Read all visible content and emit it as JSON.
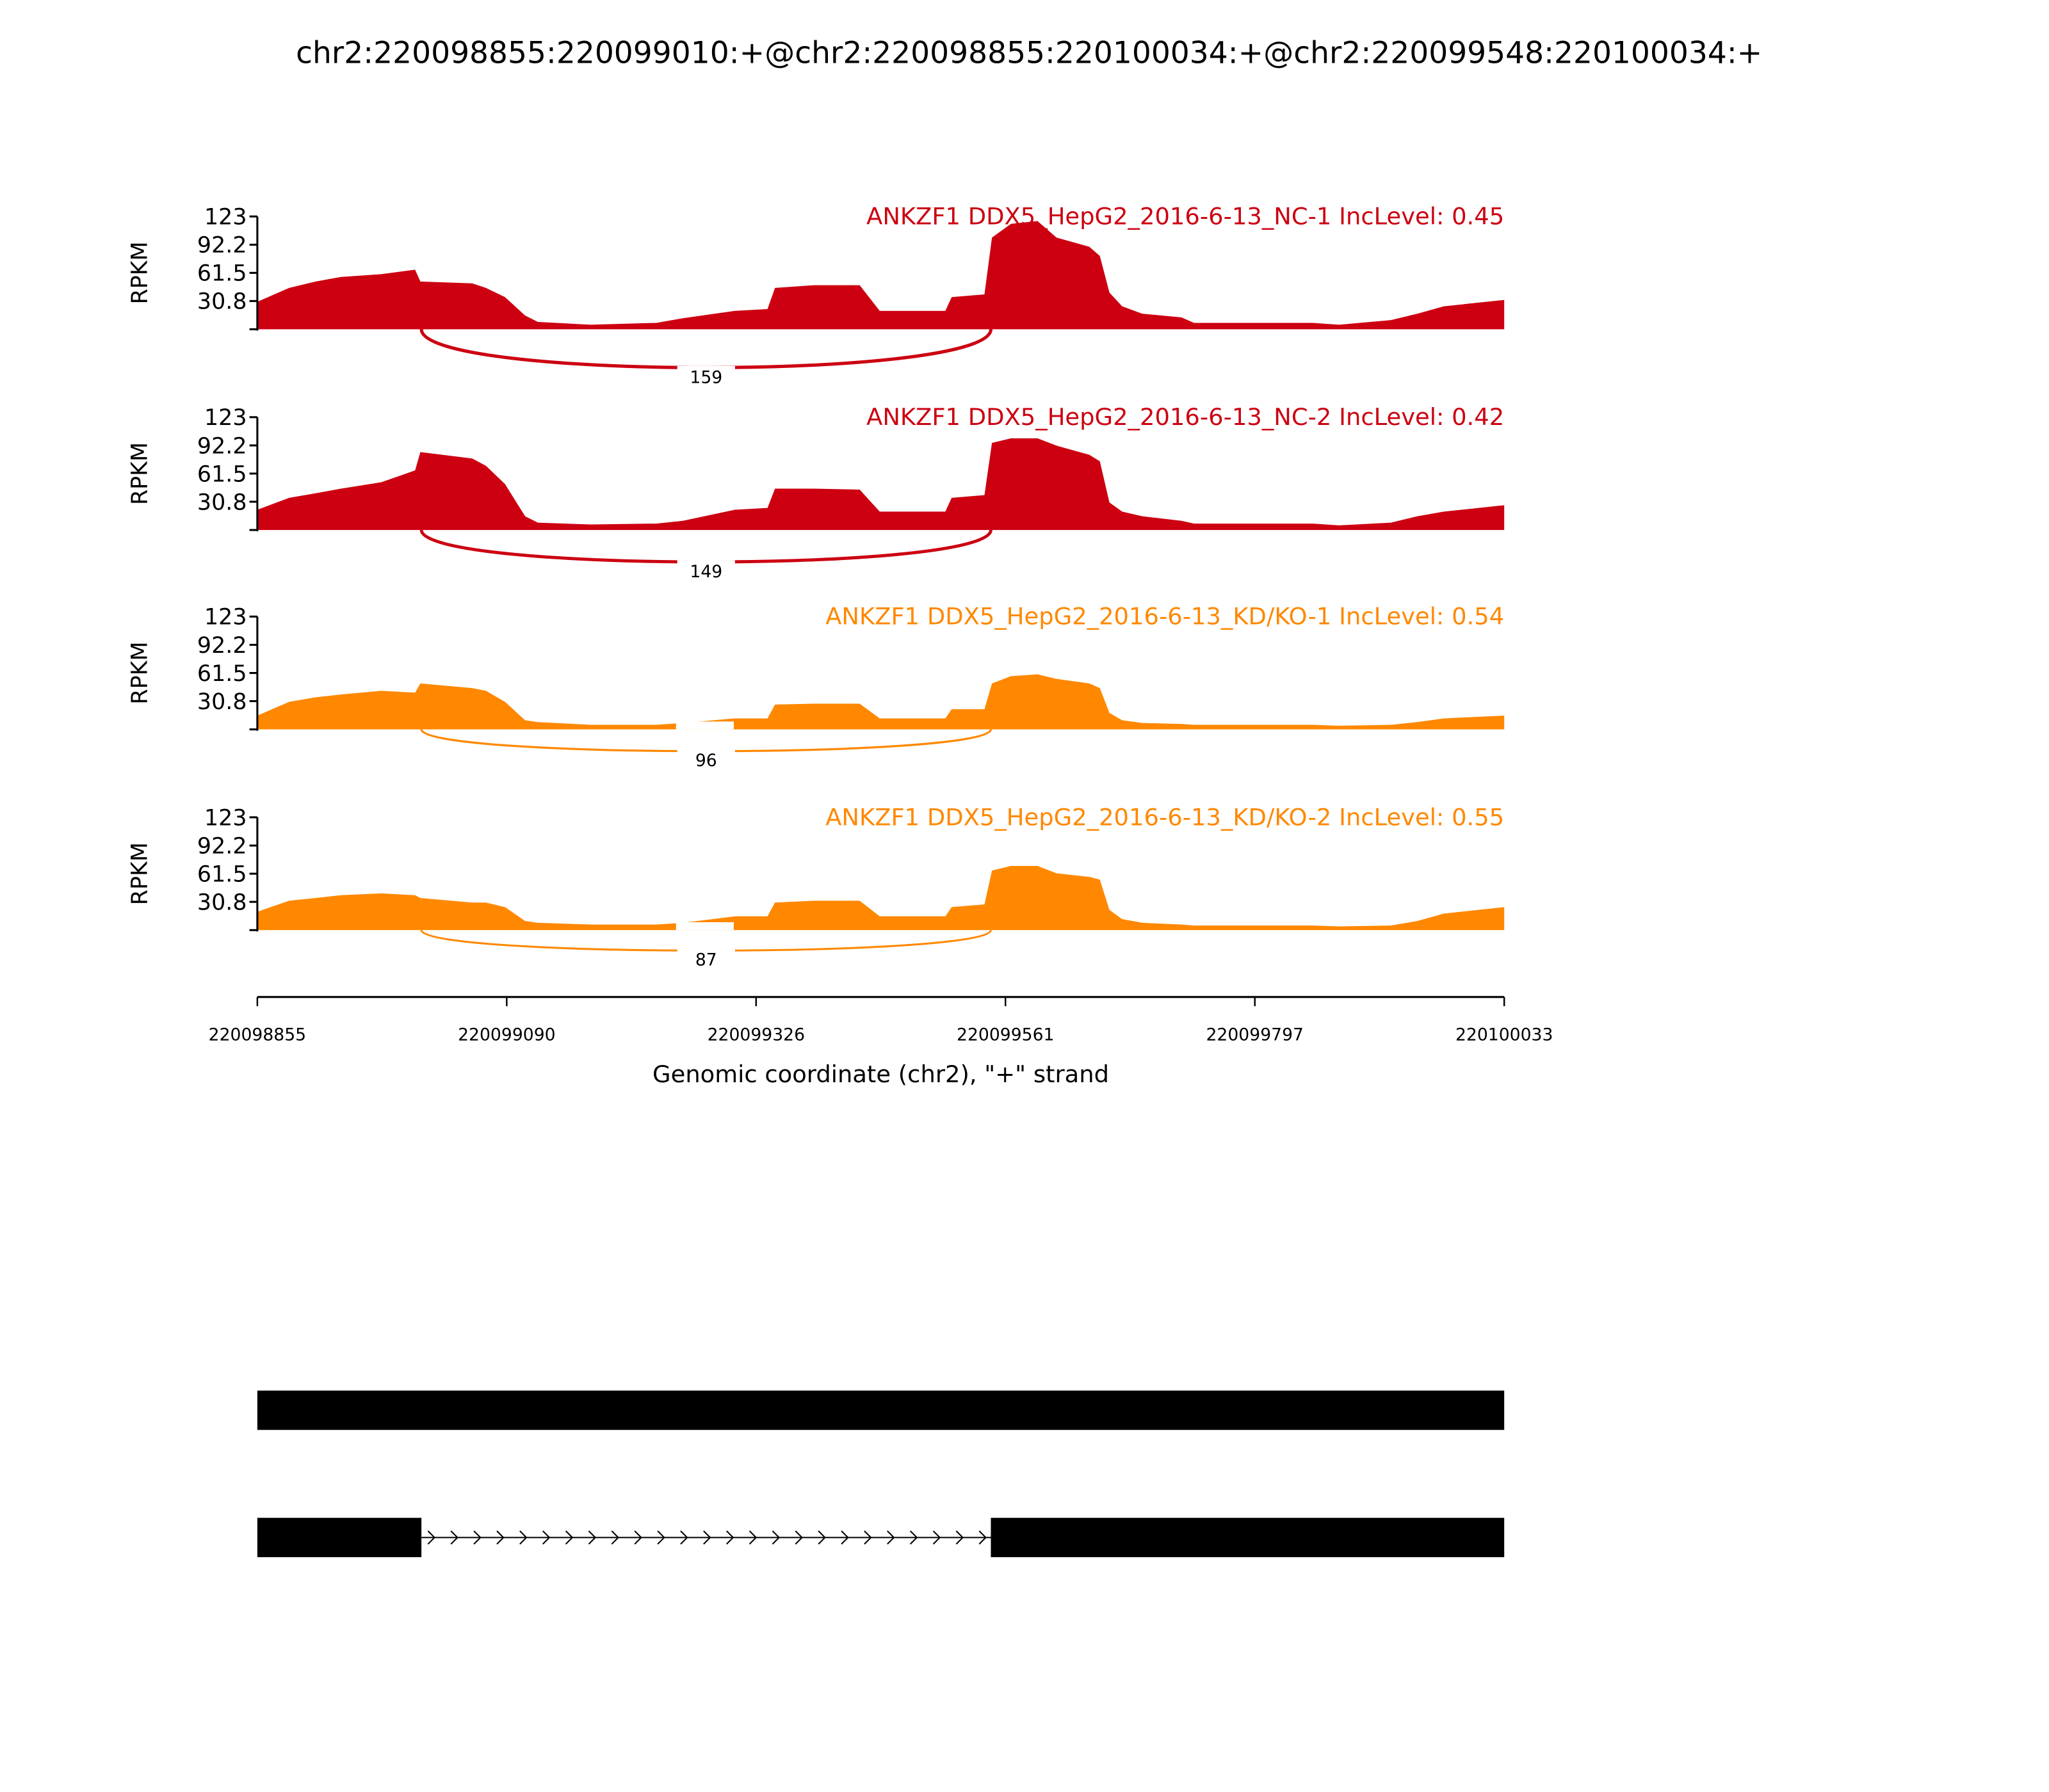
{
  "chart_data": {
    "type": "area",
    "title": "chr2:220098855:220099010:+@chr2:220098855:220100034:+@chr2:220099548:220100034:+",
    "xlabel": "Genomic coordinate (chr2), \"+\" strand",
    "ylabel": "RPKM",
    "xlim": [
      220098855,
      220100033
    ],
    "ylim": [
      0,
      123
    ],
    "yticks": [
      "30.8",
      "61.5",
      "92.2",
      "123"
    ],
    "ytick_values": [
      30.8,
      61.5,
      92.2,
      123
    ],
    "xticks": [
      "220098855",
      "220099090",
      "220099326",
      "220099561",
      "220099797",
      "220100033"
    ],
    "positions": [
      220098855,
      220098885,
      220098910,
      220098934,
      220098972,
      220099004,
      220099009,
      220099058,
      220099071,
      220099089,
      220099108,
      220099120,
      220099170,
      220099232,
      220099257,
      220099306,
      220099337,
      220099344,
      220099381,
      220099424,
      220099443,
      220099505,
      220099511,
      220099542,
      220099549,
      220099567,
      220099592,
      220099610,
      220099641,
      220099651,
      220099660,
      220099672,
      220099691,
      220099728,
      220099740,
      220099852,
      220099877,
      220099926,
      220099951,
      220099976,
      220100033
    ],
    "series": [
      {
        "name": "ANKZF1 DDX5_HepG2_2016-6-13_NC-1 IncLevel: 0.45",
        "color": "#cc0011",
        "junction": {
          "start": 220099010,
          "end": 220099548,
          "count": "159"
        },
        "values": [
          30,
          45,
          52,
          57,
          60,
          65,
          52,
          50,
          45,
          35,
          15,
          8,
          5,
          7,
          12,
          20,
          22,
          45,
          48,
          48,
          20,
          20,
          35,
          38,
          100,
          115,
          118,
          100,
          90,
          80,
          40,
          25,
          17,
          13,
          7,
          7,
          5,
          10,
          17,
          25,
          32
        ]
      },
      {
        "name": "ANKZF1 DDX5_HepG2_2016-6-13_NC-2 IncLevel: 0.42",
        "color": "#cc0011",
        "junction": {
          "start": 220099010,
          "end": 220099548,
          "count": "149"
        },
        "values": [
          22,
          35,
          40,
          45,
          52,
          65,
          85,
          78,
          70,
          50,
          15,
          8,
          6,
          7,
          10,
          22,
          24,
          45,
          45,
          44,
          20,
          20,
          35,
          38,
          95,
          100,
          100,
          92,
          82,
          75,
          30,
          20,
          15,
          10,
          7,
          7,
          5,
          8,
          15,
          20,
          27
        ]
      },
      {
        "name": "ANKZF1 DDX5_HepG2_2016-6-13_KD/KO-1 IncLevel: 0.54",
        "color": "#ff8800",
        "junction": {
          "start": 220099010,
          "end": 220099548,
          "count": "96"
        },
        "values": [
          15,
          30,
          35,
          38,
          42,
          40,
          50,
          45,
          42,
          30,
          10,
          8,
          5,
          5,
          7,
          12,
          12,
          27,
          28,
          28,
          12,
          12,
          22,
          22,
          50,
          58,
          60,
          55,
          50,
          45,
          18,
          10,
          7,
          6,
          5,
          5,
          4,
          5,
          8,
          12,
          15
        ]
      },
      {
        "name": "ANKZF1 DDX5_HepG2_2016-6-13_KD/KO-2 IncLevel: 0.55",
        "color": "#ff8800",
        "junction": {
          "start": 220099010,
          "end": 220099548,
          "count": "87"
        },
        "values": [
          20,
          32,
          35,
          38,
          40,
          38,
          35,
          30,
          30,
          25,
          10,
          8,
          6,
          6,
          8,
          15,
          15,
          30,
          32,
          32,
          15,
          15,
          25,
          28,
          65,
          70,
          70,
          62,
          58,
          55,
          22,
          12,
          8,
          6,
          5,
          5,
          4,
          5,
          10,
          18,
          25
        ]
      }
    ],
    "gene_models": [
      {
        "exons": [
          [
            220098855,
            220100033
          ]
        ]
      },
      {
        "exons": [
          [
            220098855,
            220099010
          ],
          [
            220099548,
            220100033
          ]
        ]
      }
    ]
  }
}
